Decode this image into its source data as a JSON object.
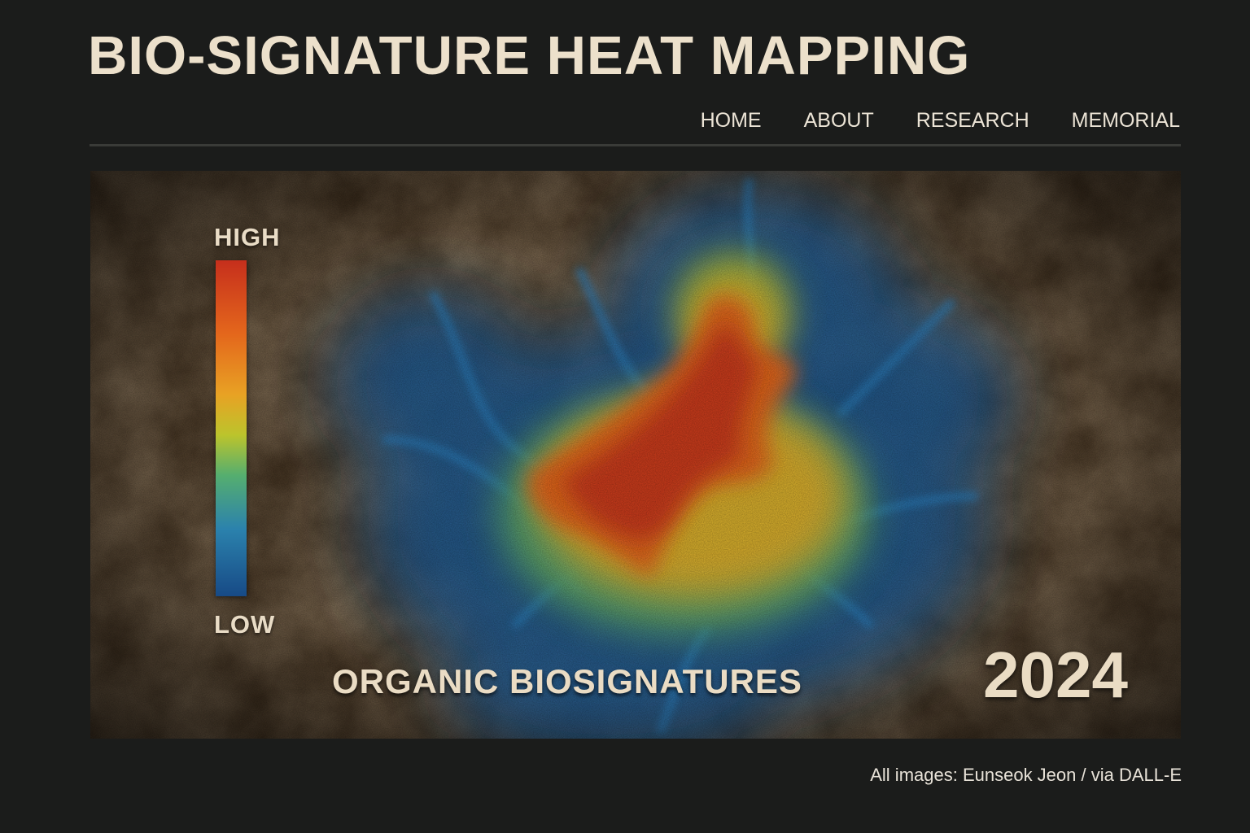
{
  "header": {
    "title": "BIO-SIGNATURE HEAT MAPPING"
  },
  "nav": {
    "items": [
      {
        "label": "HOME"
      },
      {
        "label": "ABOUT"
      },
      {
        "label": "RESEARCH"
      },
      {
        "label": "MEMORIAL"
      }
    ]
  },
  "hero": {
    "scale": {
      "high": "HIGH",
      "low": "LOW"
    },
    "caption": "ORGANIC BIOSIGNATURES",
    "year": "2024"
  },
  "footer": {
    "credit": "All images: Eunseok Jeon / via DALL-E"
  },
  "colors": {
    "background": "#1b1c1b",
    "text": "#ece0cb",
    "rock": "#3b2b1a",
    "heat_high": "#c62f1c",
    "heat_mid": "#e8a224",
    "heat_low": "#174a86"
  }
}
